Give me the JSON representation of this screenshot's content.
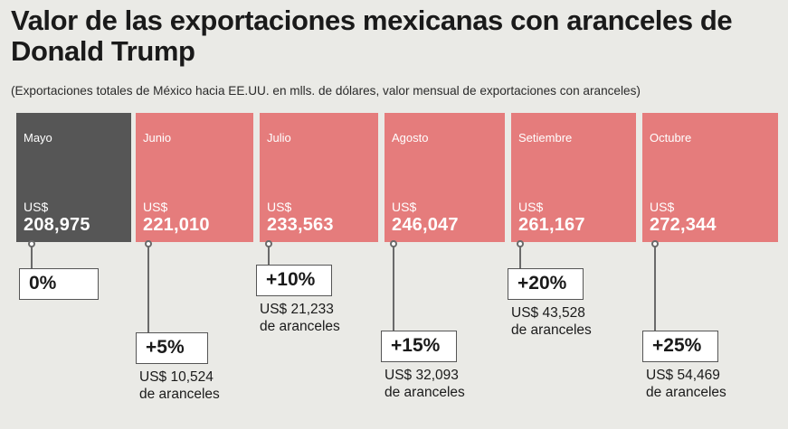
{
  "header": {
    "title": "Valor de las exportaciones mexicanas con aranceles de Donald Trump",
    "subtitle": "(Exportaciones totales de México hacia EE.UU. en mlls. de dólares, valor mensual de exportaciones con aranceles)"
  },
  "colors": {
    "base_month": "#565656",
    "tariff_month": "#e57c7c",
    "background": "#eaeae6"
  },
  "chart_data": {
    "type": "table",
    "title": "Valor de las exportaciones mexicanas con aranceles de Donald Trump",
    "subtitle": "(Exportaciones totales de México hacia EE.UU. en mlls. de dólares, valor mensual de exportaciones con aranceles)",
    "currency_label": "US$",
    "tariff_suffix": "de aranceles",
    "months": [
      {
        "month": "Mayo",
        "value": 208975,
        "value_label": "208,975",
        "tariff_pct": 0,
        "tariff_pct_label": "0%",
        "tariff_amount": null,
        "tariff_amount_label": ""
      },
      {
        "month": "Junio",
        "value": 221010,
        "value_label": "221,010",
        "tariff_pct": 5,
        "tariff_pct_label": "+5%",
        "tariff_amount": 10524,
        "tariff_amount_label": "US$ 10,524"
      },
      {
        "month": "Julio",
        "value": 233563,
        "value_label": "233,563",
        "tariff_pct": 10,
        "tariff_pct_label": "+10%",
        "tariff_amount": 21233,
        "tariff_amount_label": "US$ 21,233"
      },
      {
        "month": "Agosto",
        "value": 246047,
        "value_label": "246,047",
        "tariff_pct": 15,
        "tariff_pct_label": "+15%",
        "tariff_amount": 32093,
        "tariff_amount_label": "US$ 32,093"
      },
      {
        "month": "Setiembre",
        "value": 261167,
        "value_label": "261,167",
        "tariff_pct": 20,
        "tariff_pct_label": "+20%",
        "tariff_amount": 43528,
        "tariff_amount_label": "US$ 43,528"
      },
      {
        "month": "Octubre",
        "value": 272344,
        "value_label": "272,344",
        "tariff_pct": 25,
        "tariff_pct_label": "+25%",
        "tariff_amount": 54469,
        "tariff_amount_label": "US$ 54,469"
      }
    ]
  }
}
